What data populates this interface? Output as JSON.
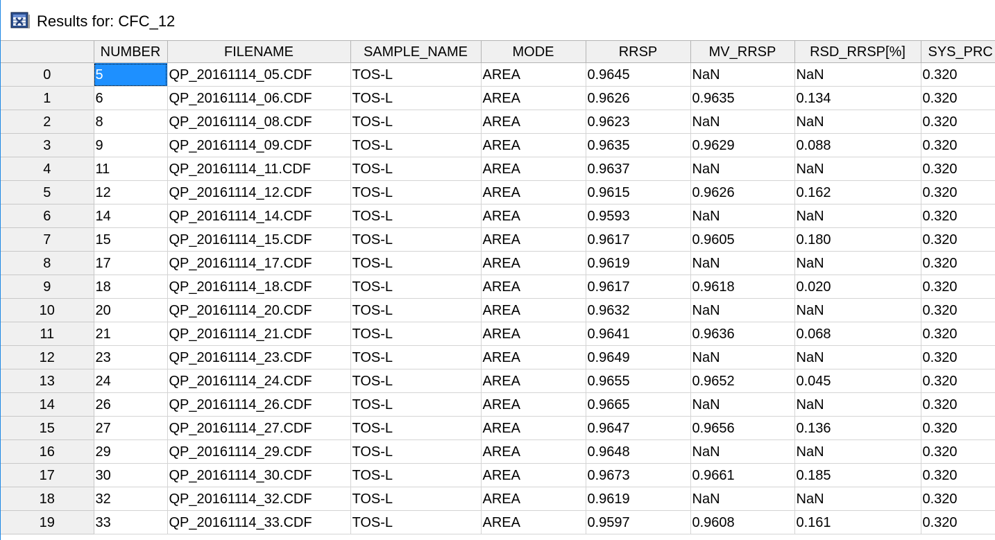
{
  "window": {
    "title": "Results for: CFC_12",
    "icon": "results-grid-icon"
  },
  "grid": {
    "columns": [
      "NUMBER",
      "FILENAME",
      "SAMPLE_NAME",
      "MODE",
      "RRSP",
      "MV_RRSP",
      "RSD_RRSP[%]",
      "SYS_PRC"
    ],
    "selected_cell": {
      "row": 0,
      "column": "NUMBER"
    },
    "rows": [
      {
        "index": "0",
        "cells": [
          "5",
          "QP_20161114_05.CDF",
          "TOS-L",
          "AREA",
          "0.9645",
          "NaN",
          "NaN",
          "0.320"
        ]
      },
      {
        "index": "1",
        "cells": [
          "6",
          "QP_20161114_06.CDF",
          "TOS-L",
          "AREA",
          "0.9626",
          "0.9635",
          "0.134",
          "0.320"
        ]
      },
      {
        "index": "2",
        "cells": [
          "8",
          "QP_20161114_08.CDF",
          "TOS-L",
          "AREA",
          "0.9623",
          "NaN",
          "NaN",
          "0.320"
        ]
      },
      {
        "index": "3",
        "cells": [
          "9",
          "QP_20161114_09.CDF",
          "TOS-L",
          "AREA",
          "0.9635",
          "0.9629",
          "0.088",
          "0.320"
        ]
      },
      {
        "index": "4",
        "cells": [
          "11",
          "QP_20161114_11.CDF",
          "TOS-L",
          "AREA",
          "0.9637",
          "NaN",
          "NaN",
          "0.320"
        ]
      },
      {
        "index": "5",
        "cells": [
          "12",
          "QP_20161114_12.CDF",
          "TOS-L",
          "AREA",
          "0.9615",
          "0.9626",
          "0.162",
          "0.320"
        ]
      },
      {
        "index": "6",
        "cells": [
          "14",
          "QP_20161114_14.CDF",
          "TOS-L",
          "AREA",
          "0.9593",
          "NaN",
          "NaN",
          "0.320"
        ]
      },
      {
        "index": "7",
        "cells": [
          "15",
          "QP_20161114_15.CDF",
          "TOS-L",
          "AREA",
          "0.9617",
          "0.9605",
          "0.180",
          "0.320"
        ]
      },
      {
        "index": "8",
        "cells": [
          "17",
          "QP_20161114_17.CDF",
          "TOS-L",
          "AREA",
          "0.9619",
          "NaN",
          "NaN",
          "0.320"
        ]
      },
      {
        "index": "9",
        "cells": [
          "18",
          "QP_20161114_18.CDF",
          "TOS-L",
          "AREA",
          "0.9617",
          "0.9618",
          "0.020",
          "0.320"
        ]
      },
      {
        "index": "10",
        "cells": [
          "20",
          "QP_20161114_20.CDF",
          "TOS-L",
          "AREA",
          "0.9632",
          "NaN",
          "NaN",
          "0.320"
        ]
      },
      {
        "index": "11",
        "cells": [
          "21",
          "QP_20161114_21.CDF",
          "TOS-L",
          "AREA",
          "0.9641",
          "0.9636",
          "0.068",
          "0.320"
        ]
      },
      {
        "index": "12",
        "cells": [
          "23",
          "QP_20161114_23.CDF",
          "TOS-L",
          "AREA",
          "0.9649",
          "NaN",
          "NaN",
          "0.320"
        ]
      },
      {
        "index": "13",
        "cells": [
          "24",
          "QP_20161114_24.CDF",
          "TOS-L",
          "AREA",
          "0.9655",
          "0.9652",
          "0.045",
          "0.320"
        ]
      },
      {
        "index": "14",
        "cells": [
          "26",
          "QP_20161114_26.CDF",
          "TOS-L",
          "AREA",
          "0.9665",
          "NaN",
          "NaN",
          "0.320"
        ]
      },
      {
        "index": "15",
        "cells": [
          "27",
          "QP_20161114_27.CDF",
          "TOS-L",
          "AREA",
          "0.9647",
          "0.9656",
          "0.136",
          "0.320"
        ]
      },
      {
        "index": "16",
        "cells": [
          "29",
          "QP_20161114_29.CDF",
          "TOS-L",
          "AREA",
          "0.9648",
          "NaN",
          "NaN",
          "0.320"
        ]
      },
      {
        "index": "17",
        "cells": [
          "30",
          "QP_20161114_30.CDF",
          "TOS-L",
          "AREA",
          "0.9673",
          "0.9661",
          "0.185",
          "0.320"
        ]
      },
      {
        "index": "18",
        "cells": [
          "32",
          "QP_20161114_32.CDF",
          "TOS-L",
          "AREA",
          "0.9619",
          "NaN",
          "NaN",
          "0.320"
        ]
      },
      {
        "index": "19",
        "cells": [
          "33",
          "QP_20161114_33.CDF",
          "TOS-L",
          "AREA",
          "0.9597",
          "0.9608",
          "0.161",
          "0.320"
        ]
      }
    ]
  }
}
